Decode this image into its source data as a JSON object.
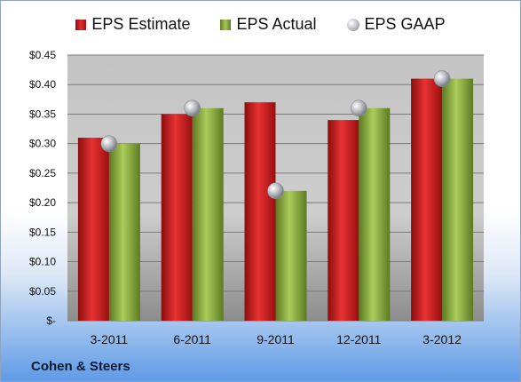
{
  "legend": {
    "estimate": "EPS Estimate",
    "actual": "EPS Actual",
    "gaap": "EPS GAAP"
  },
  "company": "Cohen & Steers",
  "colors": {
    "estimate": "#d61f1f",
    "actual": "#8fb340",
    "gaap": "#b9bcc2",
    "plot_bg": "#c7c7c7"
  },
  "chart_data": {
    "type": "bar",
    "categories": [
      "3-2011",
      "6-2011",
      "9-2011",
      "12-2011",
      "3-2012"
    ],
    "series": [
      {
        "name": "EPS Estimate",
        "type": "bar",
        "values": [
          0.31,
          0.35,
          0.37,
          0.34,
          0.41
        ]
      },
      {
        "name": "EPS Actual",
        "type": "bar",
        "values": [
          0.3,
          0.36,
          0.22,
          0.36,
          0.41
        ]
      },
      {
        "name": "EPS GAAP",
        "type": "marker",
        "values": [
          0.3,
          0.36,
          0.22,
          0.36,
          0.41
        ]
      }
    ],
    "y_ticks": [
      "$-",
      "$0.05",
      "$0.10",
      "$0.15",
      "$0.20",
      "$0.25",
      "$0.30",
      "$0.35",
      "$0.40",
      "$0.45"
    ],
    "ylim": [
      0,
      0.45
    ],
    "grid": true,
    "legend_position": "top"
  }
}
